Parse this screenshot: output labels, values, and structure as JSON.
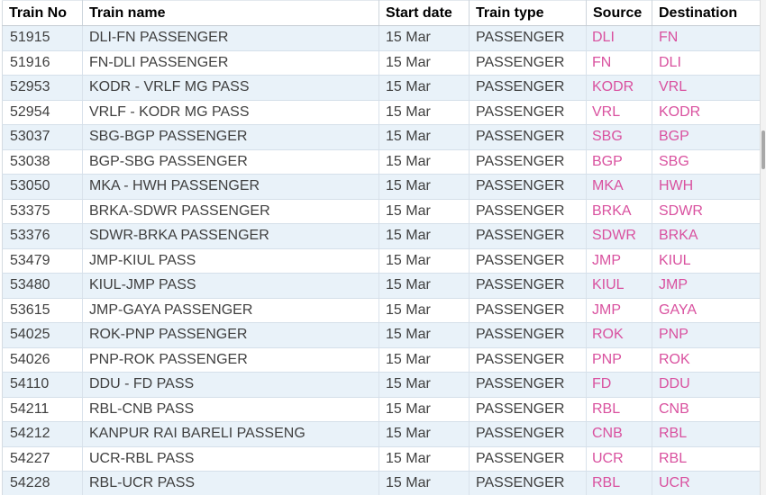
{
  "table": {
    "columns": [
      {
        "key": "train_no",
        "label": "Train No"
      },
      {
        "key": "train_name",
        "label": "Train name"
      },
      {
        "key": "start_date",
        "label": "Start date"
      },
      {
        "key": "train_type",
        "label": "Train type"
      },
      {
        "key": "source",
        "label": "Source"
      },
      {
        "key": "destination",
        "label": "Destination"
      }
    ],
    "rows": [
      {
        "train_no": "51915",
        "train_name": "DLI-FN PASSENGER",
        "start_date": "15 Mar",
        "train_type": "PASSENGER",
        "source": "DLI",
        "destination": "FN"
      },
      {
        "train_no": "51916",
        "train_name": "FN-DLI PASSENGER",
        "start_date": "15 Mar",
        "train_type": "PASSENGER",
        "source": "FN",
        "destination": "DLI"
      },
      {
        "train_no": "52953",
        "train_name": "KODR - VRLF MG PASS",
        "start_date": "15 Mar",
        "train_type": "PASSENGER",
        "source": "KODR",
        "destination": "VRL"
      },
      {
        "train_no": "52954",
        "train_name": "VRLF - KODR MG PASS",
        "start_date": "15 Mar",
        "train_type": "PASSENGER",
        "source": "VRL",
        "destination": "KODR"
      },
      {
        "train_no": "53037",
        "train_name": "SBG-BGP PASSENGER",
        "start_date": "15 Mar",
        "train_type": "PASSENGER",
        "source": "SBG",
        "destination": "BGP"
      },
      {
        "train_no": "53038",
        "train_name": "BGP-SBG PASSENGER",
        "start_date": "15 Mar",
        "train_type": "PASSENGER",
        "source": "BGP",
        "destination": "SBG"
      },
      {
        "train_no": "53050",
        "train_name": "MKA - HWH PASSENGER",
        "start_date": "15 Mar",
        "train_type": "PASSENGER",
        "source": "MKA",
        "destination": "HWH"
      },
      {
        "train_no": "53375",
        "train_name": "BRKA-SDWR PASSENGER",
        "start_date": "15 Mar",
        "train_type": "PASSENGER",
        "source": "BRKA",
        "destination": "SDWR"
      },
      {
        "train_no": "53376",
        "train_name": "SDWR-BRKA PASSENGER",
        "start_date": "15 Mar",
        "train_type": "PASSENGER",
        "source": "SDWR",
        "destination": "BRKA"
      },
      {
        "train_no": "53479",
        "train_name": "JMP-KIUL PASS",
        "start_date": "15 Mar",
        "train_type": "PASSENGER",
        "source": "JMP",
        "destination": "KIUL"
      },
      {
        "train_no": "53480",
        "train_name": "KIUL-JMP PASS",
        "start_date": "15 Mar",
        "train_type": "PASSENGER",
        "source": "KIUL",
        "destination": "JMP"
      },
      {
        "train_no": "53615",
        "train_name": "JMP-GAYA PASSENGER",
        "start_date": "15 Mar",
        "train_type": "PASSENGER",
        "source": "JMP",
        "destination": "GAYA"
      },
      {
        "train_no": "54025",
        "train_name": "ROK-PNP PASSENGER",
        "start_date": "15 Mar",
        "train_type": "PASSENGER",
        "source": "ROK",
        "destination": "PNP"
      },
      {
        "train_no": "54026",
        "train_name": "PNP-ROK PASSENGER",
        "start_date": "15 Mar",
        "train_type": "PASSENGER",
        "source": "PNP",
        "destination": "ROK"
      },
      {
        "train_no": "54110",
        "train_name": "DDU - FD PASS",
        "start_date": "15 Mar",
        "train_type": "PASSENGER",
        "source": "FD",
        "destination": "DDU"
      },
      {
        "train_no": "54211",
        "train_name": "RBL-CNB PASS",
        "start_date": "15 Mar",
        "train_type": "PASSENGER",
        "source": "RBL",
        "destination": "CNB"
      },
      {
        "train_no": "54212",
        "train_name": "KANPUR RAI BARELI PASSENG",
        "start_date": "15 Mar",
        "train_type": "PASSENGER",
        "source": "CNB",
        "destination": "RBL"
      },
      {
        "train_no": "54227",
        "train_name": "UCR-RBL PASS",
        "start_date": "15 Mar",
        "train_type": "PASSENGER",
        "source": "UCR",
        "destination": "RBL"
      },
      {
        "train_no": "54228",
        "train_name": "RBL-UCR PASS",
        "start_date": "15 Mar",
        "train_type": "PASSENGER",
        "source": "RBL",
        "destination": "UCR"
      }
    ]
  },
  "colors": {
    "link_pink": "#d9519f",
    "row_alt_blue": "#e9f2f9",
    "cell_border": "#d5e0ea",
    "header_text": "#000000",
    "body_text": "#3f3f3f"
  }
}
